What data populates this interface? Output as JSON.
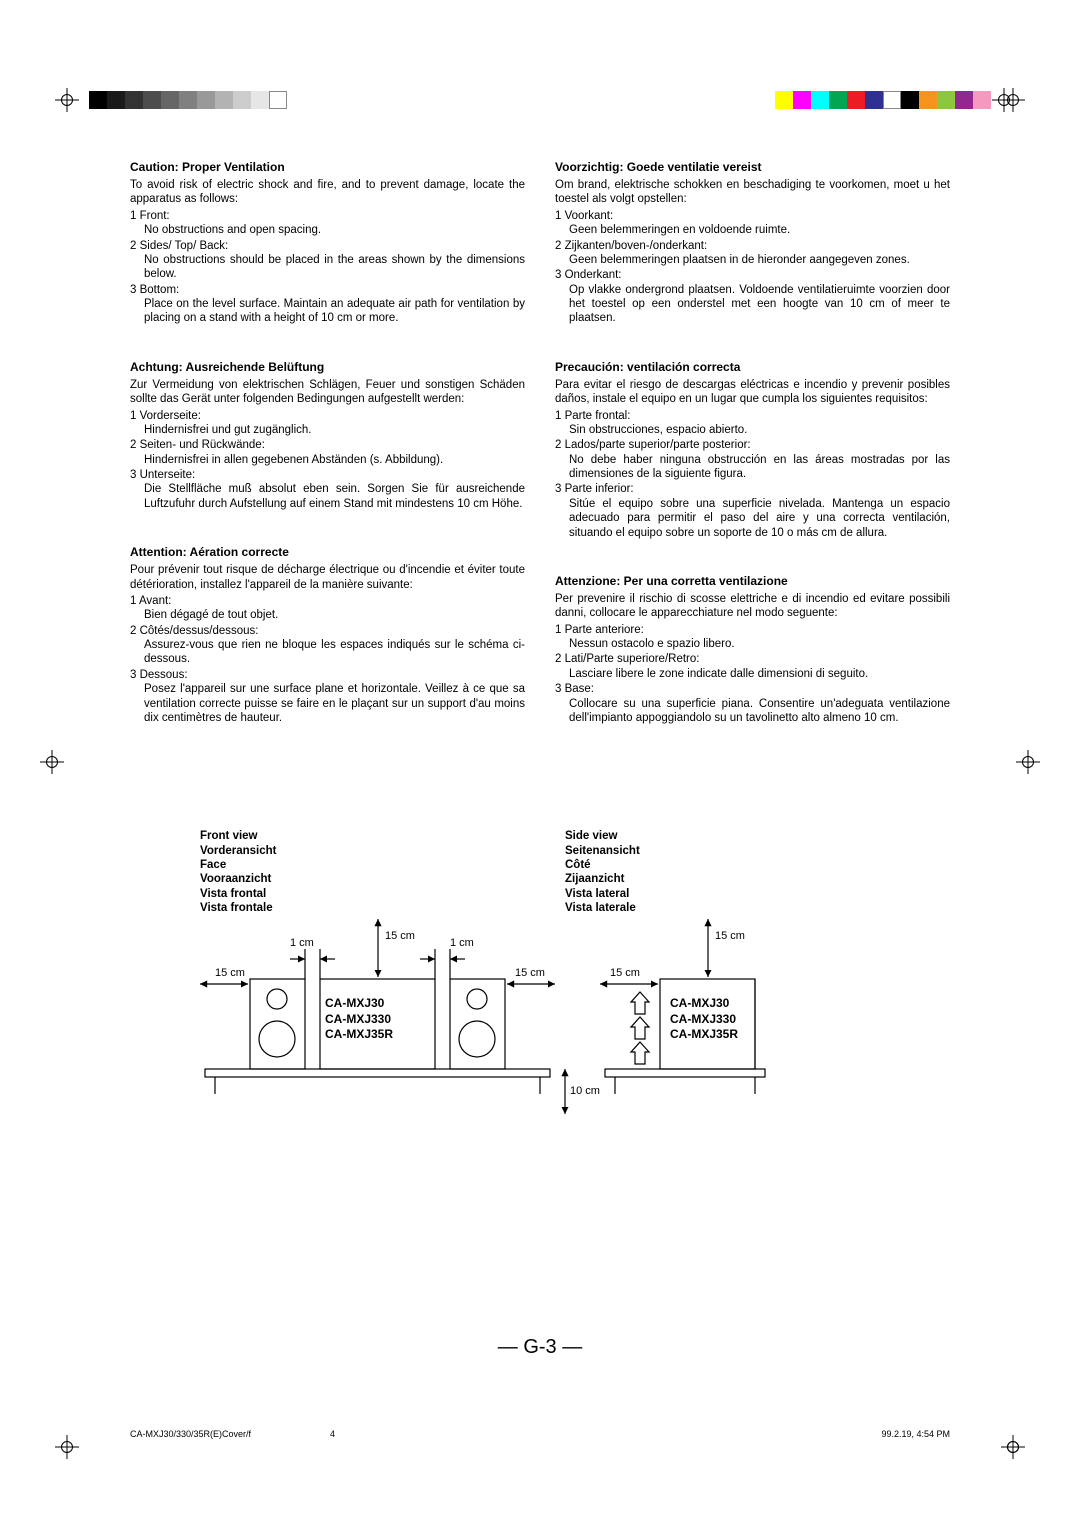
{
  "gray_swatches": [
    "#000000",
    "#1a1a1a",
    "#333333",
    "#4d4d4d",
    "#666666",
    "#808080",
    "#999999",
    "#b3b3b3",
    "#cccccc",
    "#e6e6e6",
    "#ffffff"
  ],
  "color_swatches": [
    "#ffff00",
    "#ff00ff",
    "#00ffff",
    "#00a651",
    "#ed1c24",
    "#2e3192",
    "#ffffff",
    "#000000",
    "#f7941d",
    "#8dc63f",
    "#92278f",
    "#f49ac1"
  ],
  "sections": {
    "en": {
      "title": "Caution: Proper Ventilation",
      "intro": "To avoid risk of electric shock and fire, and to prevent damage, locate the apparatus as follows:",
      "i1h": "1 Front:",
      "i1b": "No obstructions and open spacing.",
      "i2h": "2 Sides/ Top/ Back:",
      "i2b": "No obstructions should be placed in the areas shown by the dimensions below.",
      "i3h": "3 Bottom:",
      "i3b": "Place on the level surface. Maintain an adequate air path for ventilation by placing on a stand with a height of 10 cm or more."
    },
    "de": {
      "title": "Achtung: Ausreichende Belüftung",
      "intro": "Zur Vermeidung von elektrischen Schlägen, Feuer und sonstigen Schäden sollte das Gerät unter folgenden Bedingungen aufgestellt werden:",
      "i1h": "1 Vorderseite:",
      "i1b": "Hindernisfrei und gut zugänglich.",
      "i2h": "2 Seiten- und Rückwände:",
      "i2b": "Hindernisfrei in allen gegebenen Abständen (s. Abbildung).",
      "i3h": "3 Unterseite:",
      "i3b": "Die Stellfläche muß absolut eben sein. Sorgen Sie für ausreichende Luftzufuhr durch Aufstellung auf einem Stand mit mindestens 10 cm Höhe."
    },
    "fr": {
      "title": "Attention: Aération correcte",
      "intro": "Pour prévenir tout risque de décharge électrique ou d'incendie et éviter toute détérioration, installez l'appareil de la manière suivante:",
      "i1h": "1 Avant:",
      "i1b": "Bien dégagé de tout objet.",
      "i2h": "2 Côtés/dessus/dessous:",
      "i2b": "Assurez-vous que rien ne bloque les espaces indiqués sur le schéma ci-dessous.",
      "i3h": "3 Dessous:",
      "i3b": "Posez l'appareil sur une surface plane et horizontale. Veillez à ce que sa ventilation correcte puisse se faire en le plaçant sur un support d'au moins dix centimètres de hauteur."
    },
    "nl": {
      "title": "Voorzichtig: Goede ventilatie vereist",
      "intro": "Om brand, elektrische schokken en beschadiging te voorkomen, moet u het toestel als volgt opstellen:",
      "i1h": "1 Voorkant:",
      "i1b": "Geen belemmeringen en voldoende ruimte.",
      "i2h": "2 Zijkanten/boven-/onderkant:",
      "i2b": "Geen belemmeringen plaatsen in de hieronder aangegeven zones.",
      "i3h": "3 Onderkant:",
      "i3b": "Op vlakke ondergrond plaatsen. Voldoende ventilatieruimte voorzien door het toestel op een onderstel met een hoogte van 10 cm of meer te plaatsen."
    },
    "es": {
      "title": "Precaución: ventilación correcta",
      "intro": "Para evitar el riesgo de descargas eléctricas e incendio y prevenir posibles daños, instale el equipo en un lugar que cumpla los siguientes requisitos:",
      "i1h": "1 Parte frontal:",
      "i1b": "Sin obstrucciones, espacio abierto.",
      "i2h": "2 Lados/parte superior/parte posterior:",
      "i2b": "No debe haber ninguna obstrucción en las áreas mostradas por las dimensiones de la siguiente figura.",
      "i3h": "3 Parte inferior:",
      "i3b": "Sitúe el equipo sobre una superficie nivelada. Mantenga un espacio adecuado para permitir el paso del aire y una correcta ventilación, situando el equipo sobre un soporte de 10 o más cm de allura."
    },
    "it": {
      "title": "Attenzione: Per una corretta ventilazione",
      "intro": "Per prevenire il rischio di scosse elettriche e di incendio ed evitare possibili danni, collocare le apparecchiature nel modo seguente:",
      "i1h": "1 Parte anteriore:",
      "i1b": "Nessun ostacolo e spazio libero.",
      "i2h": "2 Lati/Parte superiore/Retro:",
      "i2b": "Lasciare libere le zone indicate dalle dimensioni di seguito.",
      "i3h": "3 Base:",
      "i3b": "Collocare su una superficie piana. Consentire un'adeguata ventilazione dell'impianto appoggiandolo su un tavolinetto alto almeno 10 cm."
    }
  },
  "diagram": {
    "front_labels": [
      "Front view",
      "Vorderansicht",
      "Face",
      "Vooraanzicht",
      "Vista frontal",
      "Vista frontale"
    ],
    "side_labels": [
      "Side view",
      "Seitenansicht",
      "Côté",
      "Zijaanzicht",
      "Vista lateral",
      "Vista laterale"
    ],
    "models": [
      "CA-MXJ30",
      "CA-MXJ330",
      "CA-MXJ35R"
    ],
    "d_15cm": "15 cm",
    "d_1cm": "1 cm",
    "d_10cm": "10 cm",
    "stroke": "#000000",
    "stroke_width": 1.2
  },
  "page_number": "— G-3 —",
  "footer": {
    "doc": "CA-MXJ30/330/35R(E)Cover/f",
    "page": "4",
    "date": "99.2.19, 4:54 PM"
  }
}
